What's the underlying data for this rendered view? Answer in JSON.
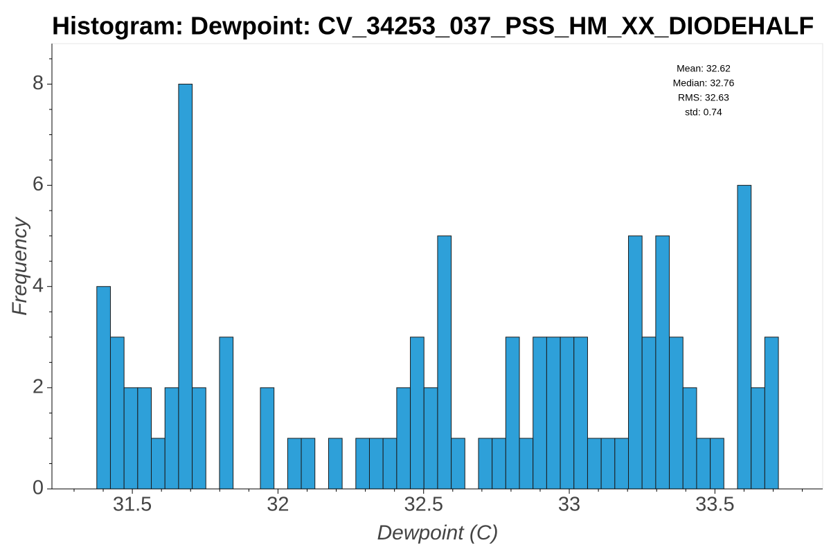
{
  "chart_data": {
    "type": "histogram",
    "title": "Histogram: Dewpoint: CV_34253_037_PSS_HM_XX_DIODEHALF",
    "xlabel": "Dewpoint (C)",
    "ylabel": "Frequency",
    "annotations": [
      "Mean: 32.62",
      "Median: 32.76",
      "RMS: 32.63",
      "std: 0.74"
    ],
    "color": "#2ea0d9",
    "edgecolor": "#1a1a1a",
    "bins": [
      31.378,
      31.4248,
      31.4716,
      31.5184,
      31.5652,
      31.612,
      31.6588,
      31.7056,
      31.7524,
      31.7992,
      31.846,
      31.8928,
      31.9396,
      31.9864,
      32.0332,
      32.08,
      32.1268,
      32.1736,
      32.2204,
      32.2672,
      32.314,
      32.3608,
      32.4076,
      32.4544,
      32.5012,
      32.548,
      32.5948,
      32.6416,
      32.6884,
      32.7352,
      32.782,
      32.8288,
      32.8756,
      32.9224,
      32.9692,
      33.016,
      33.0628,
      33.1096,
      33.1564,
      33.2032,
      33.25,
      33.2968,
      33.3436,
      33.3904,
      33.4372,
      33.484,
      33.5308,
      33.5776,
      33.6244,
      33.6712,
      33.718
    ],
    "values": [
      4,
      3,
      2,
      2,
      1,
      2,
      8,
      2,
      0,
      3,
      0,
      0,
      2,
      0,
      1,
      1,
      0,
      1,
      0,
      1,
      1,
      1,
      2,
      3,
      2,
      5,
      1,
      0,
      1,
      1,
      3,
      1,
      3,
      3,
      3,
      3,
      1,
      1,
      1,
      5,
      3,
      5,
      3,
      2,
      1,
      1,
      0,
      6,
      2,
      3
    ],
    "xlim": [
      31.224,
      33.87
    ],
    "ylim": [
      0,
      8.8
    ],
    "xticks": [
      31.5,
      32,
      32.5,
      33,
      33.5
    ],
    "yticks": [
      0,
      2,
      4,
      6,
      8
    ],
    "xminorticks": [
      31.3,
      31.4,
      31.6,
      31.7,
      31.8,
      31.9,
      32.1,
      32.2,
      32.3,
      32.4,
      32.6,
      32.7,
      32.8,
      32.9,
      33.1,
      33.2,
      33.3,
      33.4,
      33.6,
      33.7,
      33.8
    ],
    "yminorticks": [
      0.5,
      1,
      1.5,
      2.5,
      3,
      3.5,
      4.5,
      5,
      5.5,
      6.5,
      7,
      7.5,
      8.5
    ]
  }
}
